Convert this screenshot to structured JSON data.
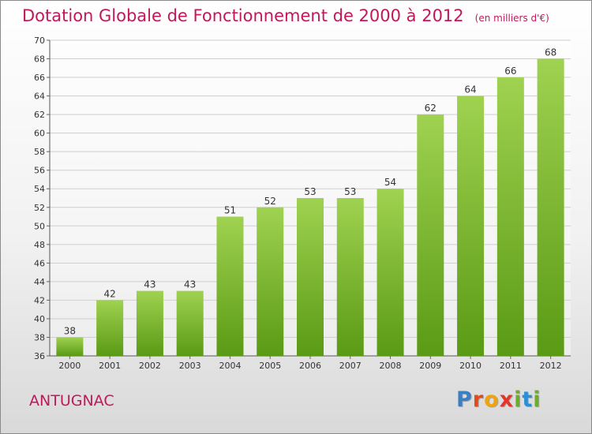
{
  "header": {
    "title": "Dotation Globale de Fonctionnement de 2000 à 2012",
    "unit": "(en milliers d'€)"
  },
  "footer": {
    "place": "ANTUGNAC",
    "logo_text": "Proxiti"
  },
  "colors": {
    "title": "#c2185b",
    "bar_light": "#9fd250",
    "bar_dark": "#5a9a14",
    "grid": "#cfcfcf"
  },
  "chart_data": {
    "type": "bar",
    "categories": [
      "2000",
      "2001",
      "2002",
      "2003",
      "2004",
      "2005",
      "2006",
      "2007",
      "2008",
      "2009",
      "2010",
      "2011",
      "2012"
    ],
    "values": [
      38,
      42,
      43,
      43,
      51,
      52,
      53,
      53,
      54,
      62,
      64,
      66,
      68
    ],
    "title": "Dotation Globale de Fonctionnement de 2000 à 2012",
    "ylim": [
      36,
      70
    ],
    "ytick_step": 2,
    "grid": true,
    "data_labels": true
  }
}
